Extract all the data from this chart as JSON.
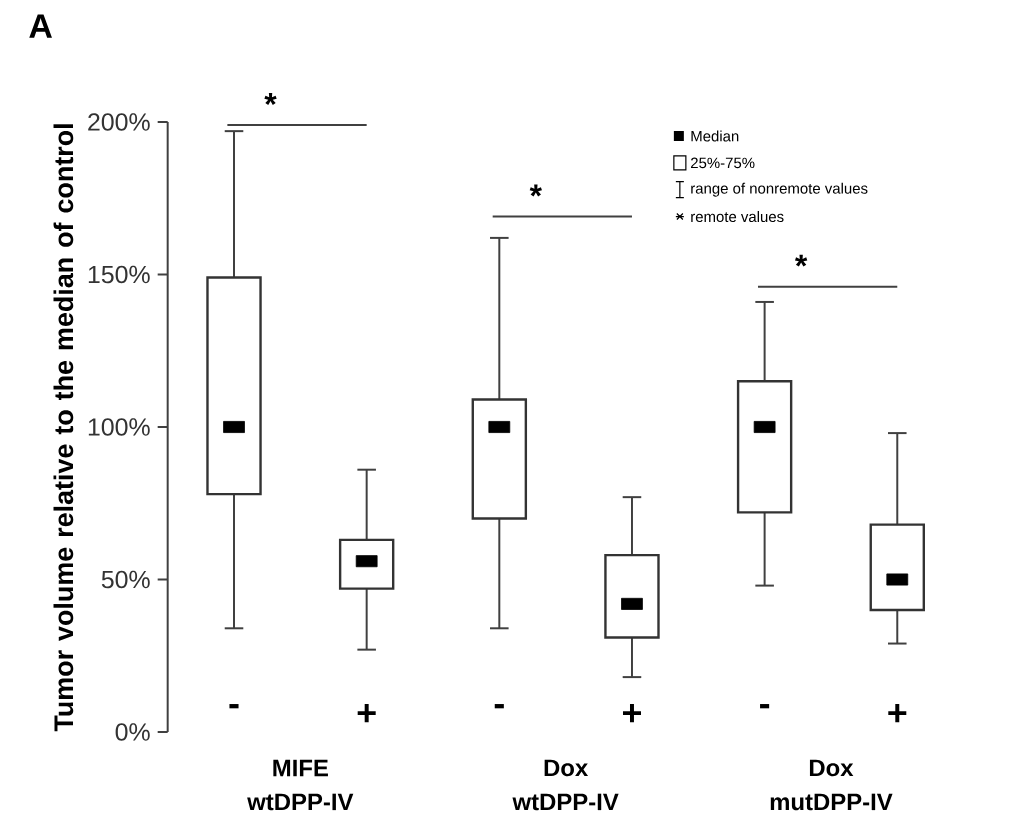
{
  "chart_data": {
    "type": "box",
    "title": "A",
    "ylabel": "Tumor volume relative to the median of control",
    "categories": [
      "-",
      "+",
      "-",
      "+",
      "-",
      "+"
    ],
    "boxes": [
      {
        "low": 34,
        "q1": 78,
        "median": 100,
        "q3": 149,
        "high": 197
      },
      {
        "low": 27,
        "q1": 47,
        "median": 56,
        "q3": 63,
        "high": 86
      },
      {
        "low": 34,
        "q1": 70,
        "median": 100,
        "q3": 109,
        "high": 162
      },
      {
        "low": 18,
        "q1": 31,
        "median": 42,
        "q3": 58,
        "high": 77
      },
      {
        "low": 48,
        "q1": 72,
        "median": 100,
        "q3": 115,
        "high": 141
      },
      {
        "low": 29,
        "q1": 40,
        "median": 50,
        "q3": 68,
        "high": 98
      }
    ],
    "ylim": [
      0,
      200
    ],
    "yticks": [
      {
        "value": 0,
        "label": "0%"
      },
      {
        "value": 50,
        "label": "50%"
      },
      {
        "value": 100,
        "label": "100%"
      },
      {
        "value": 150,
        "label": "150%"
      },
      {
        "value": 200,
        "label": "200%"
      }
    ],
    "annotations": [
      "*",
      "*",
      "*",
      "MIFE",
      "wtDPP-IV",
      "Dox",
      "wtDPP-IV",
      "Dox",
      "mutDPP-IV",
      "Median",
      "25%-75%",
      "range of nonremote values",
      "remote values"
    ]
  }
}
